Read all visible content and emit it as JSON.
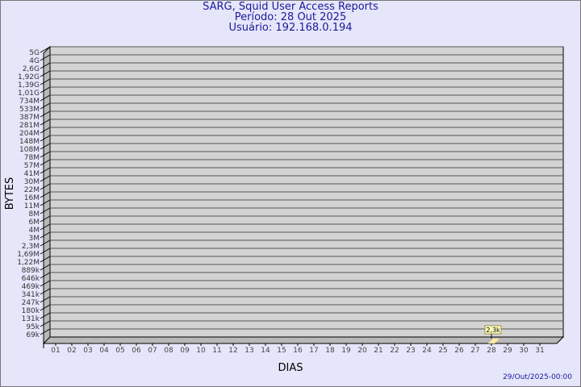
{
  "chart_data": {
    "type": "bar",
    "title": "SARG, Squid User Access Reports",
    "subtitle_period": "Período: 28 Out 2025",
    "subtitle_user": "Usuário: 192.168.0.194",
    "xlabel": "DIAS",
    "ylabel": "BYTES",
    "y_scale": "log",
    "y_tick_labels": [
      "5G",
      "4G",
      "2,6G",
      "1,92G",
      "1,39G",
      "1,01G",
      "734M",
      "533M",
      "387M",
      "281M",
      "204M",
      "148M",
      "108M",
      "78M",
      "57M",
      "41M",
      "30M",
      "22M",
      "16M",
      "11M",
      "8M",
      "6M",
      "4M",
      "3M",
      "2,3M",
      "1,69M",
      "1,22M",
      "889k",
      "646k",
      "469k",
      "341k",
      "247k",
      "180k",
      "131k",
      "95k",
      "69k"
    ],
    "categories": [
      "01",
      "02",
      "03",
      "04",
      "05",
      "06",
      "07",
      "08",
      "09",
      "10",
      "11",
      "12",
      "13",
      "14",
      "15",
      "16",
      "17",
      "18",
      "19",
      "20",
      "21",
      "22",
      "23",
      "24",
      "25",
      "26",
      "27",
      "28",
      "29",
      "30",
      "31"
    ],
    "bars": [
      {
        "category": "28",
        "value": 2300,
        "label": "2,3k"
      }
    ],
    "grid": true,
    "footer": "29/Out/2025-00:00",
    "colors": {
      "background": "#e6e6fa",
      "plot": "#d3d3d3",
      "bar": "#ffe9a0",
      "text": "#1a1a9a"
    }
  }
}
